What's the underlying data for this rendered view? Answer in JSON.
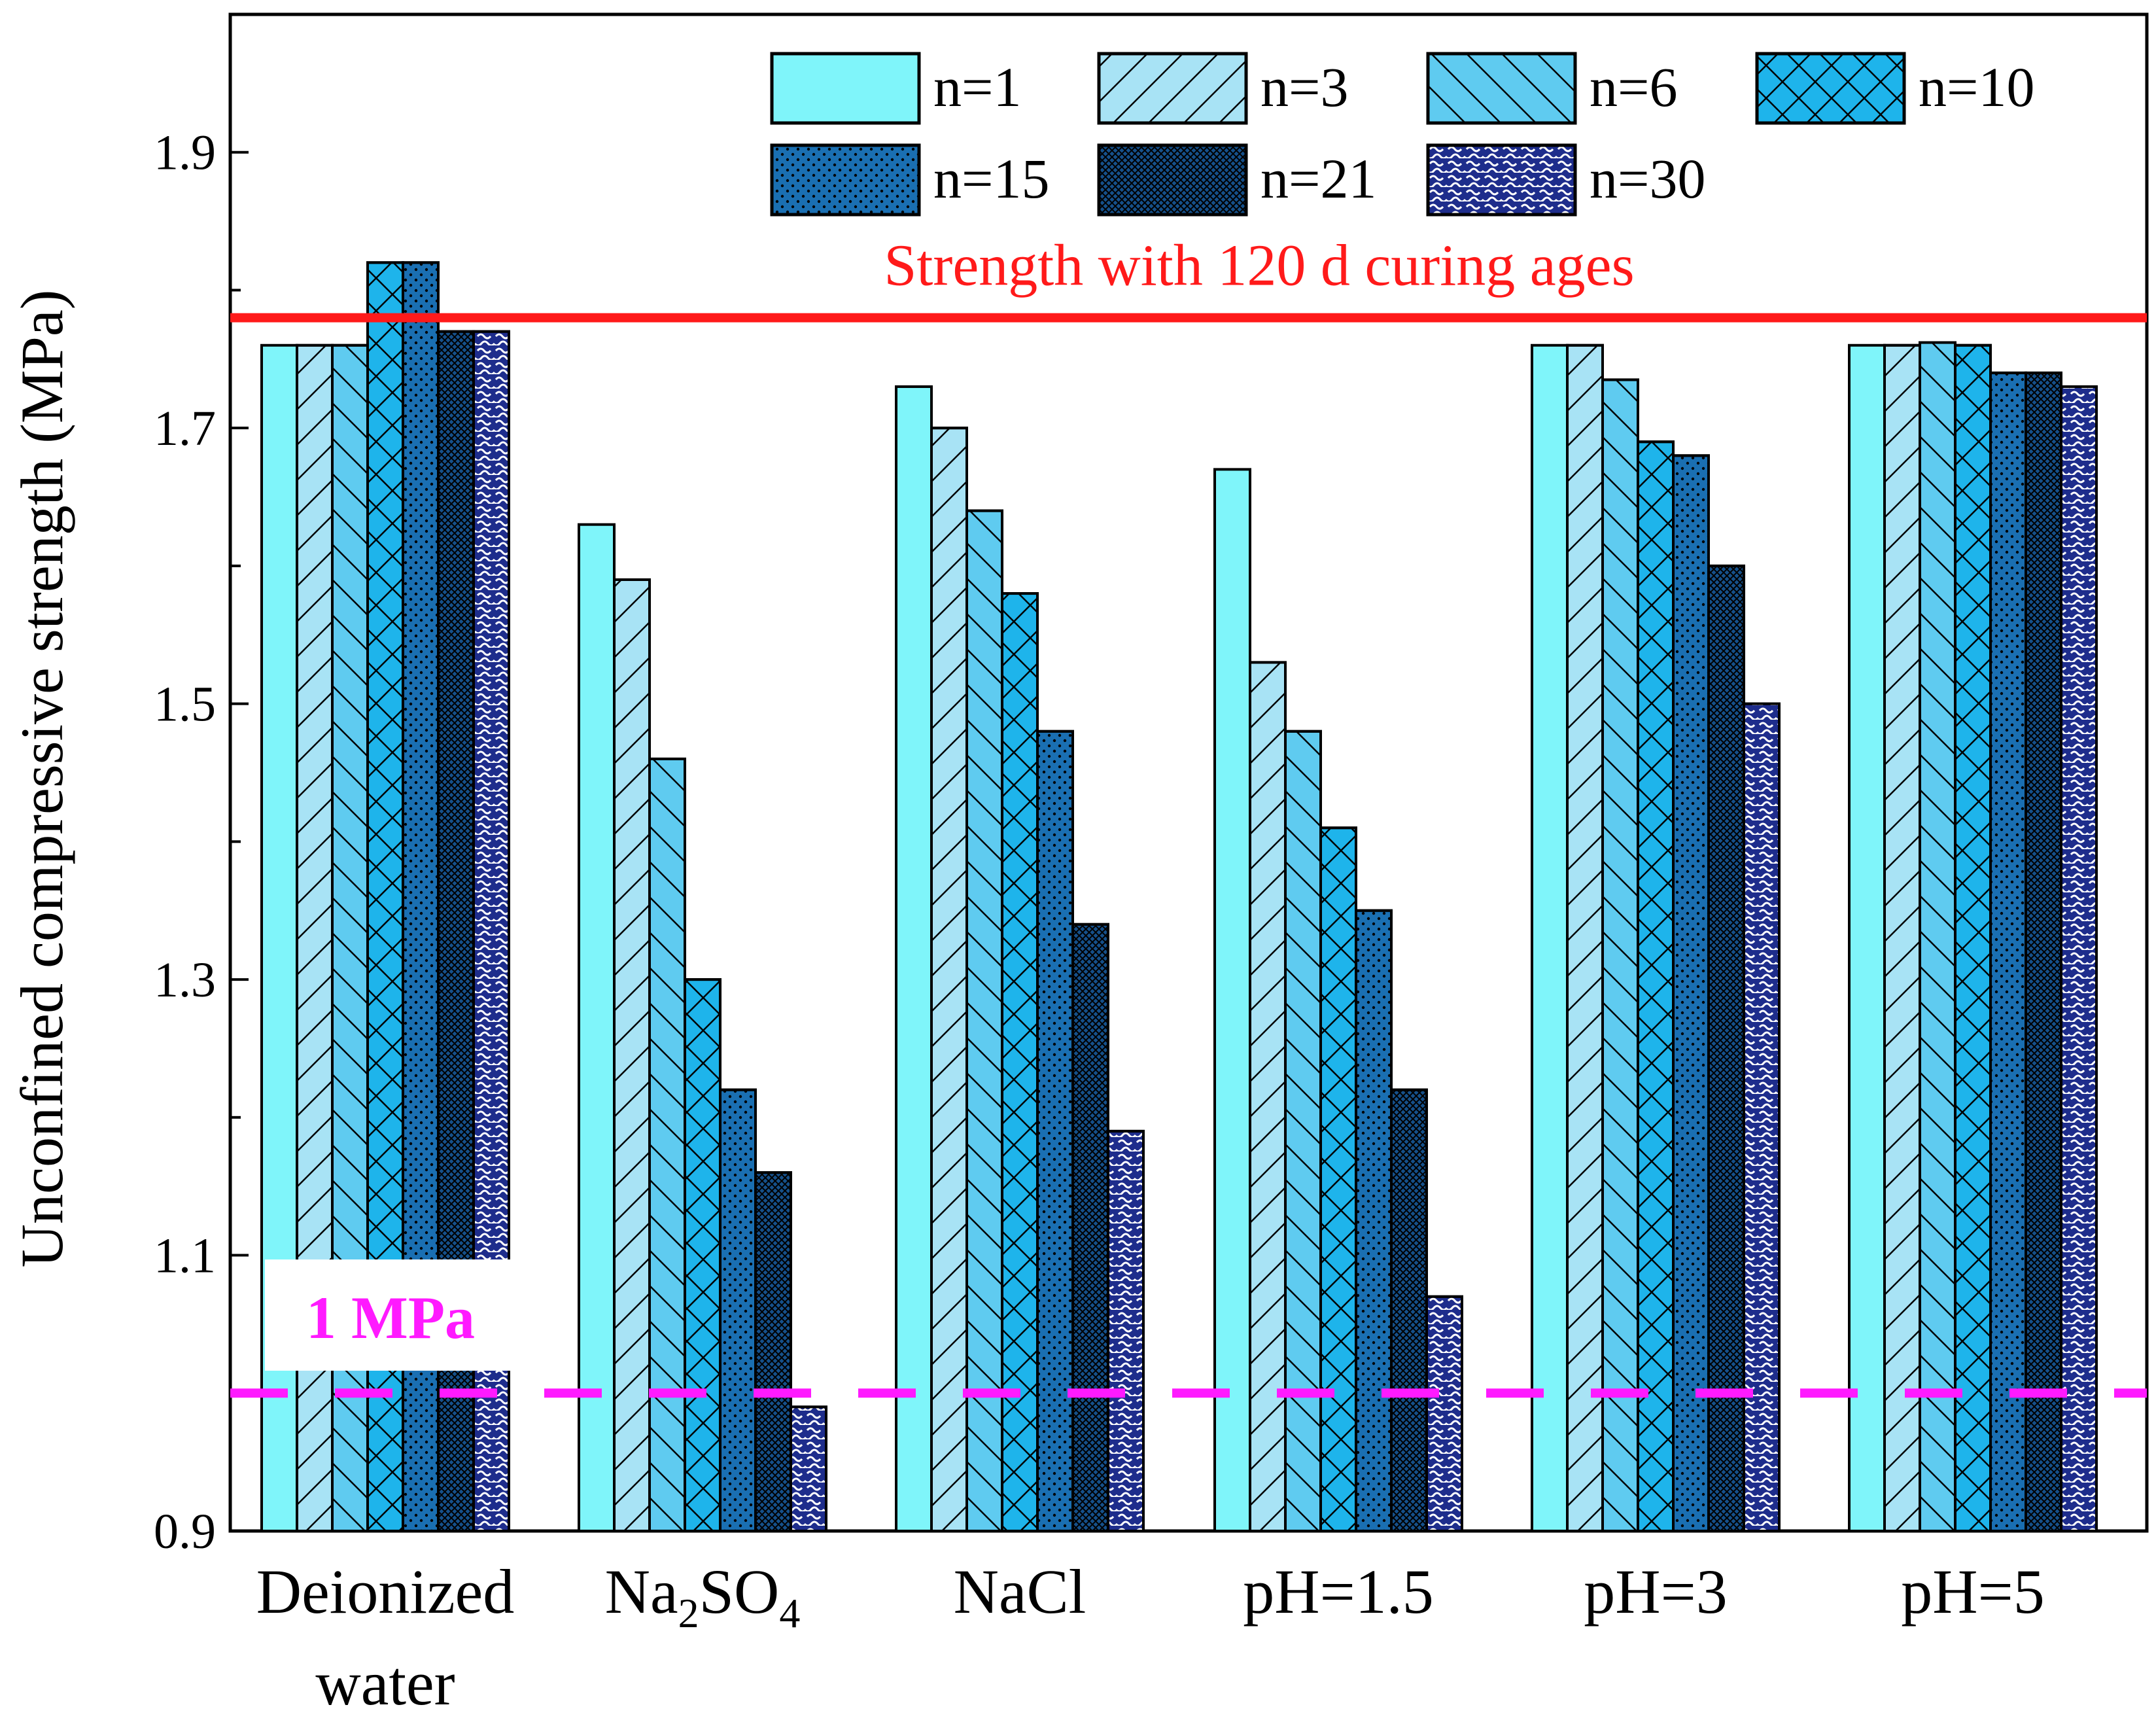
{
  "chart_data": {
    "type": "bar",
    "title": "",
    "xlabel": "",
    "ylabel": "Unconfined compressive strength (MPa)",
    "ylim": [
      0.9,
      2.0
    ],
    "yticks": [
      "0.9",
      "1.1",
      "1.3",
      "1.5",
      "1.7",
      "1.9"
    ],
    "grid": false,
    "legend_position": "top-right",
    "categories": [
      {
        "line1": "Deionized",
        "line2": "water"
      },
      {
        "base": "Na",
        "sub1": "2",
        "mid": "SO",
        "sub2": "4"
      },
      {
        "line1": "NaCl"
      },
      {
        "line1": "pH=1.5"
      },
      {
        "line1": "pH=3"
      },
      {
        "line1": "pH=5"
      }
    ],
    "series": [
      {
        "name": "n=1",
        "color": "#7ff5fa",
        "pattern": "none",
        "values": [
          1.76,
          1.63,
          1.73,
          1.67,
          1.76,
          1.76
        ]
      },
      {
        "name": "n=3",
        "color": "#a8e3f5",
        "pattern": "fwd",
        "values": [
          1.76,
          1.59,
          1.7,
          1.53,
          1.76,
          1.76
        ]
      },
      {
        "name": "n=6",
        "color": "#5fcbf0",
        "pattern": "back",
        "values": [
          1.76,
          1.46,
          1.64,
          1.48,
          1.735,
          1.762
        ]
      },
      {
        "name": "n=10",
        "color": "#1eb4eb",
        "pattern": "cross",
        "values": [
          1.82,
          1.3,
          1.58,
          1.41,
          1.69,
          1.76
        ]
      },
      {
        "name": "n=15",
        "color": "#1a6fb2",
        "pattern": "dots",
        "values": [
          1.82,
          1.22,
          1.48,
          1.35,
          1.68,
          1.74
        ]
      },
      {
        "name": "n=21",
        "color": "#15508a",
        "pattern": "dense",
        "values": [
          1.77,
          1.16,
          1.34,
          1.22,
          1.6,
          1.74
        ]
      },
      {
        "name": "n=30",
        "color": "#1e2d8c",
        "pattern": "wave",
        "values": [
          1.77,
          0.99,
          1.19,
          1.07,
          1.5,
          1.73
        ]
      }
    ],
    "reference_lines": [
      {
        "name": "curing-120d",
        "value": 1.78,
        "label": "Strength with 120 d curing ages",
        "color": "#ff1a1a"
      },
      {
        "name": "one-mpa",
        "value": 1.0,
        "label": "1 MPa",
        "color": "#ff1aff"
      }
    ]
  }
}
